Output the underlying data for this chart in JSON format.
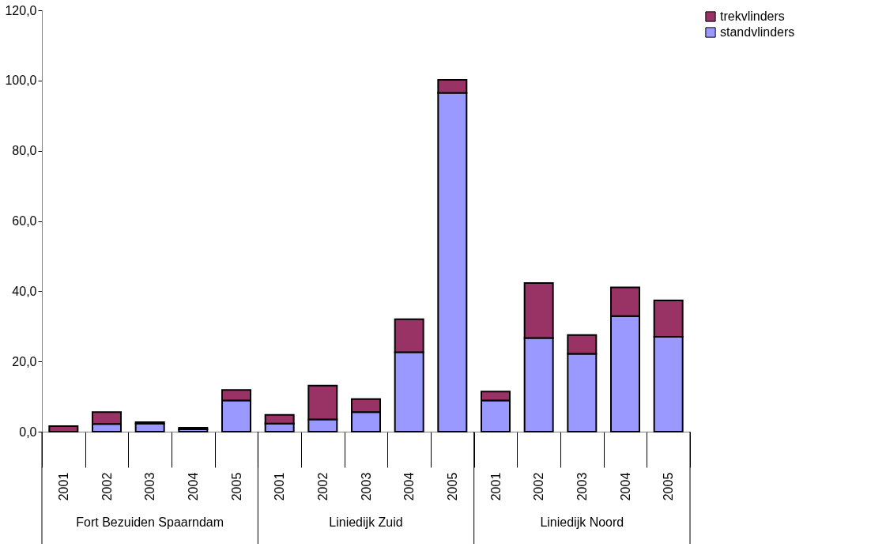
{
  "chart_data": {
    "type": "bar",
    "stacked": true,
    "categories": [
      "2001",
      "2002",
      "2003",
      "2004",
      "2005",
      "2001",
      "2002",
      "2003",
      "2004",
      "2005",
      "2001",
      "2002",
      "2003",
      "2004",
      "2005"
    ],
    "series": [
      {
        "name": "standvlinders",
        "color": "#9999ff",
        "values": [
          null,
          2.2,
          2.3,
          0.7,
          8.9,
          2.3,
          3.5,
          5.6,
          22.6,
          96.5,
          8.9,
          26.7,
          22.2,
          32.9,
          27.0
        ]
      },
      {
        "name": "trekvlinders",
        "color": "#993366",
        "values": [
          1.6,
          3.4,
          0.4,
          0.4,
          3.0,
          2.5,
          9.6,
          3.7,
          9.4,
          3.7,
          2.5,
          15.6,
          5.3,
          8.2,
          10.4
        ]
      }
    ],
    "ylim": [
      0,
      120
    ],
    "yticks": [
      {
        "value": 0,
        "label": "0,0"
      },
      {
        "value": 20,
        "label": "20,0"
      },
      {
        "value": 40,
        "label": "40,0"
      },
      {
        "value": 60,
        "label": "60,0"
      },
      {
        "value": 80,
        "label": "80,0"
      },
      {
        "value": 100,
        "label": "100,0"
      },
      {
        "value": 120,
        "label": "120,0"
      }
    ],
    "annotations": [
      "Fort Bezuiden Spaarndam",
      "Liniedijk Zuid",
      "Liniedijk Noord"
    ],
    "legend": "right",
    "grid": false
  }
}
